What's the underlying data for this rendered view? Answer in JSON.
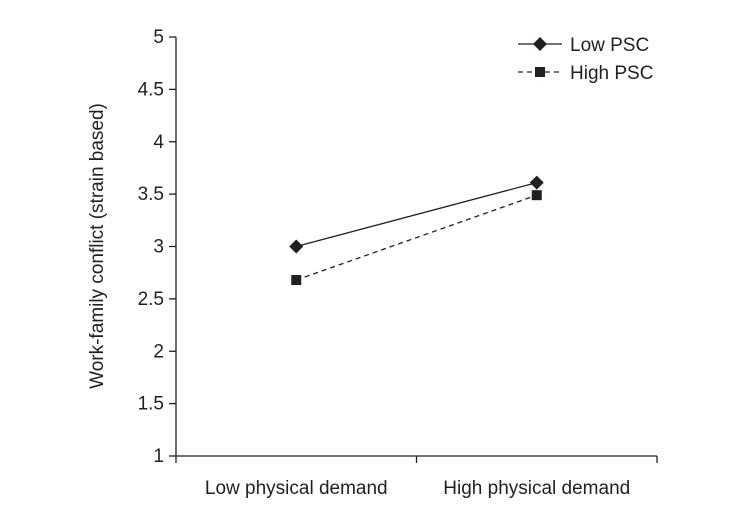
{
  "chart_data": {
    "type": "line",
    "categories": [
      "Low physical demand",
      "High physical demand"
    ],
    "series": [
      {
        "name": "Low PSC",
        "values": [
          3.0,
          3.61
        ],
        "line_style": "solid",
        "marker": "diamond"
      },
      {
        "name": "High PSC",
        "values": [
          2.68,
          3.49
        ],
        "line_style": "dashed",
        "marker": "square"
      }
    ],
    "ylabel": "Work-family conflict (strain based)",
    "xlabel": "",
    "ylim": [
      1,
      5
    ],
    "yticks": [
      "1",
      "1.5",
      "2",
      "2.5",
      "3",
      "3.5",
      "4",
      "4.5",
      "5"
    ],
    "grid": false,
    "legend_position": "top-right",
    "colors": {
      "ink": "#231f20",
      "background": "#ffffff"
    }
  }
}
